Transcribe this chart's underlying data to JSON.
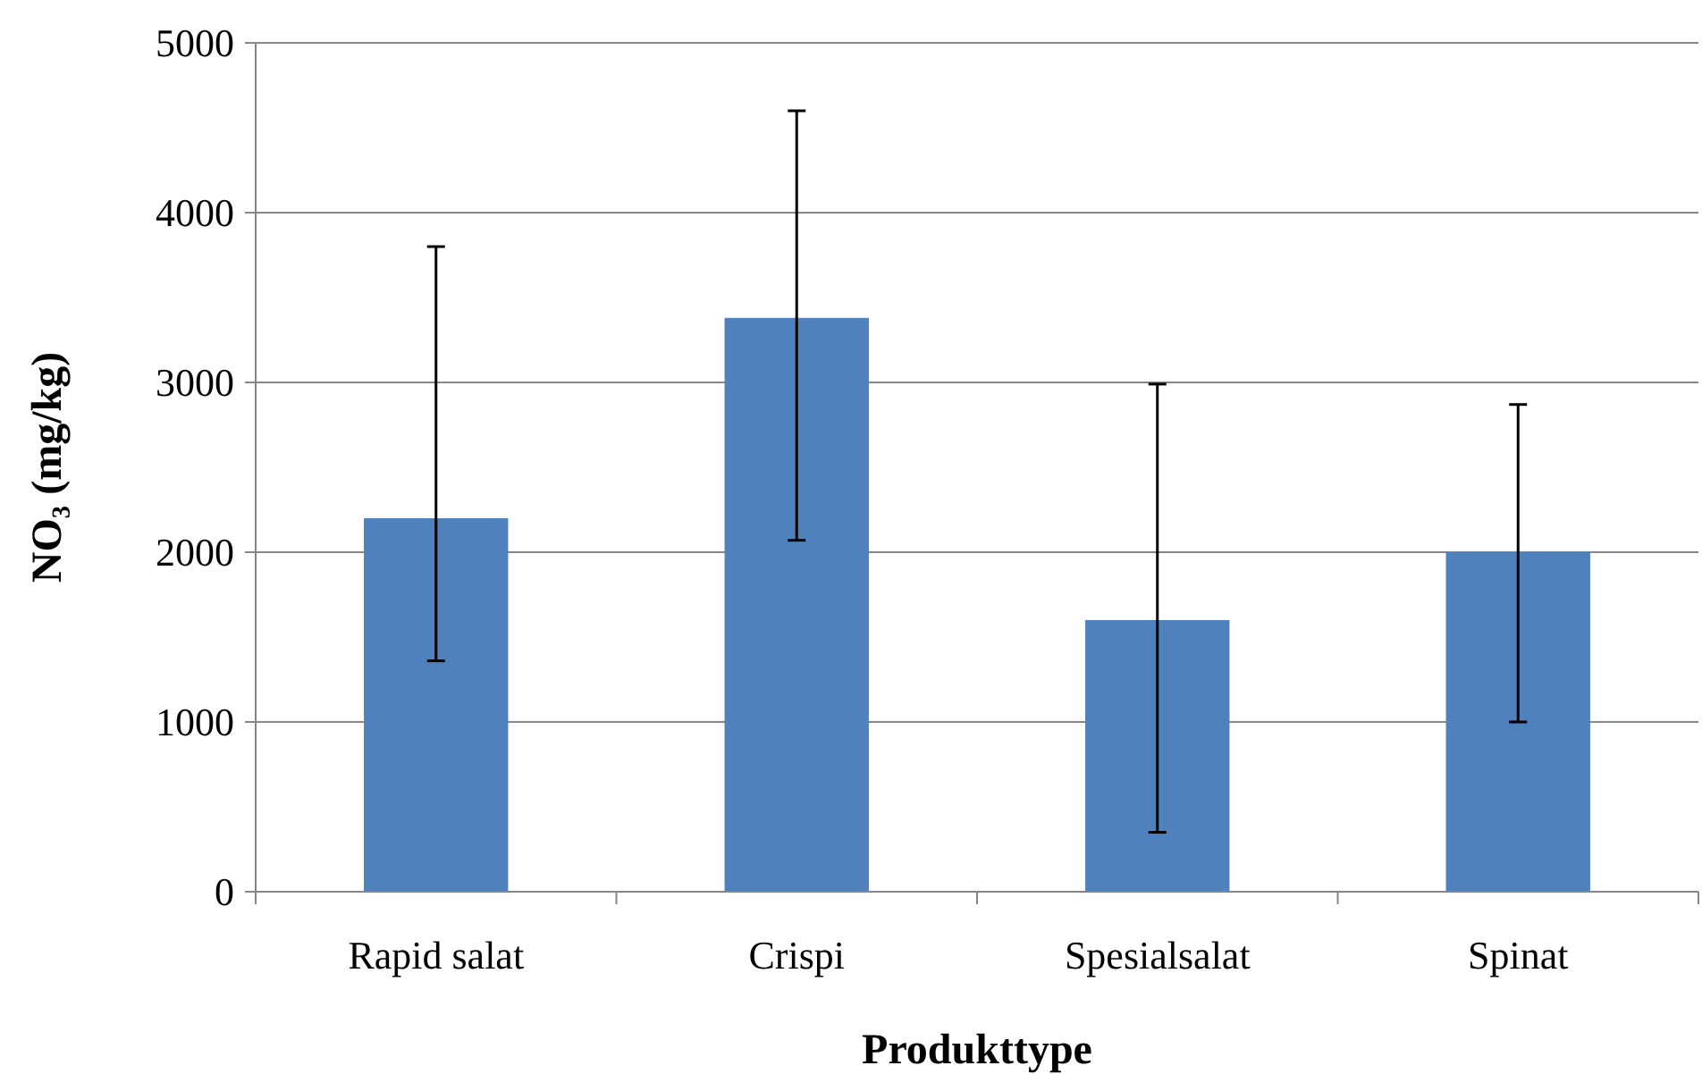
{
  "chart_data": {
    "type": "bar",
    "xlabel": "Produkttype",
    "ylabel": "NO₃ (mg/kg)",
    "categories": [
      "Rapid salat",
      "Crispi",
      "Spesialsalat",
      "Spinat"
    ],
    "series": [
      {
        "color": "#4f81bd",
        "values": [
          2200,
          3380,
          1600,
          2000
        ],
        "errors": [
          [
            1360,
            3800
          ],
          [
            2070,
            4600
          ],
          [
            350,
            2990
          ],
          [
            1000,
            2870
          ]
        ]
      }
    ],
    "ylim": [
      0,
      5000
    ],
    "yticks": [
      0,
      1000,
      2000,
      3000,
      4000,
      5000
    ],
    "grid": "y"
  }
}
